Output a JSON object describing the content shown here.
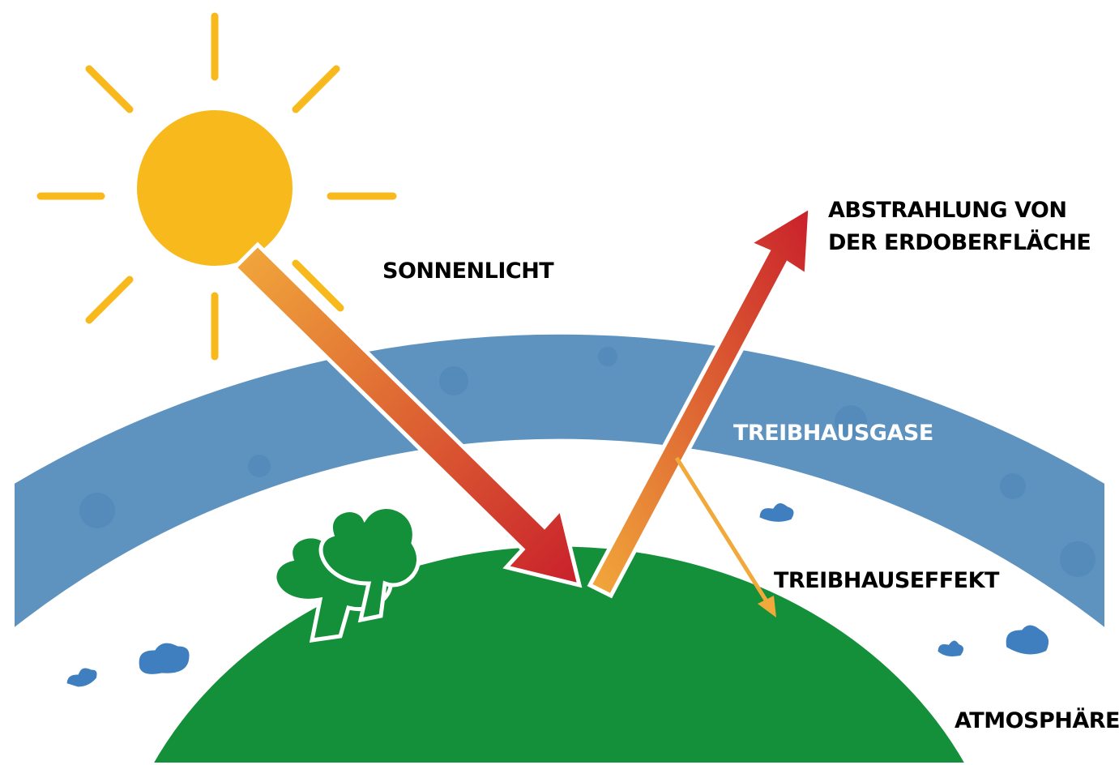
{
  "labels": {
    "sunlight": "SONNENLICHT",
    "radiation": [
      "ABSTRAHLUNG VON",
      "DER ERDOBERFLÄCHE"
    ],
    "gases": "TREIBHAUSGASE",
    "effect": "TREIBHAUSEFFEKT",
    "atmosphere": "ATMOSPHÄRE"
  }
}
